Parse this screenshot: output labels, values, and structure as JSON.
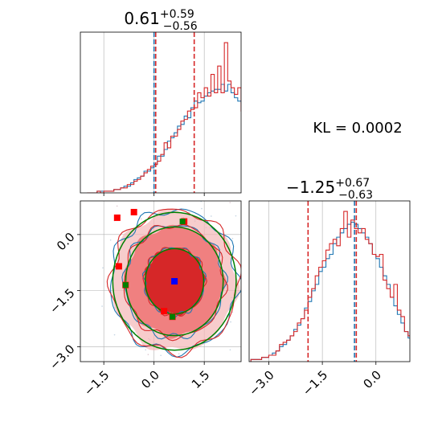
{
  "chart_data": [
    {
      "type": "histogram",
      "panel": "top-left",
      "title": {
        "median": "0.61",
        "plus": "+0.59",
        "minus": "−0.56"
      },
      "xlim": [
        -2.2,
        2.6
      ],
      "x_ticks": [
        "−1.5",
        "0.0",
        "1.5"
      ],
      "grid": true,
      "bins": {
        "start": -2.0,
        "width": 0.1
      },
      "series": [
        {
          "color": "#1f77b4",
          "values": [
            0,
            0,
            0,
            1,
            1,
            1,
            1,
            1,
            2,
            2,
            3,
            4,
            4,
            6,
            8,
            9,
            10,
            13,
            13,
            15,
            17,
            22,
            22,
            26,
            31,
            33,
            36,
            40,
            41,
            46,
            45,
            51,
            55,
            54,
            55,
            58,
            60,
            61,
            62,
            62,
            65,
            61,
            65,
            60,
            57,
            55,
            54,
            52,
            52,
            50,
            48,
            44,
            40,
            37,
            36,
            32,
            29,
            26,
            22,
            19,
            16,
            14,
            12,
            11,
            9,
            6,
            5,
            3,
            3,
            2,
            2,
            2,
            1,
            1,
            1,
            0
          ]
        },
        {
          "color": "#d62728",
          "values": [
            0,
            0,
            0,
            1,
            0,
            1,
            1,
            1,
            2,
            2,
            3,
            3,
            5,
            5,
            7,
            8,
            10,
            12,
            14,
            16,
            17,
            19,
            23,
            30,
            27,
            34,
            34,
            38,
            43,
            44,
            49,
            50,
            51,
            60,
            57,
            63,
            58,
            71,
            60,
            76,
            60,
            90,
            67,
            63,
            59,
            63,
            49,
            53,
            54,
            45,
            51,
            37,
            48,
            33,
            30,
            34,
            25,
            24,
            20,
            16,
            18,
            13,
            9,
            11,
            7,
            6,
            5,
            4,
            3,
            3,
            2,
            2,
            1,
            1,
            0,
            0
          ]
        }
      ],
      "markers": [
        {
          "color": "#1f77b4",
          "x": 0.0
        },
        {
          "color": "#d62728",
          "x": 0.05
        },
        {
          "color": "#d62728",
          "x": 1.2
        }
      ]
    },
    {
      "type": "contour",
      "panel": "bottom-left",
      "xlim": [
        -2.2,
        2.6
      ],
      "ylim": [
        -3.4,
        0.9
      ],
      "x_ticks": [
        "−1.5",
        "0.0",
        "1.5"
      ],
      "y_ticks": [
        "0.0",
        "−1.5",
        "−3.0"
      ],
      "grid": true,
      "center": [
        0.61,
        -1.25
      ],
      "blue_square": [
        0.61,
        -1.25
      ],
      "red_squares": [
        [
          -1.1,
          0.45
        ],
        [
          -0.6,
          0.6
        ],
        [
          -1.05,
          -0.85
        ],
        [
          -0.85,
          -1.35
        ],
        [
          0.3,
          -2.05
        ],
        [
          0.9,
          0.35
        ],
        [
          0.55,
          -2.2
        ]
      ],
      "green_squares": [
        [
          0.85,
          0.35
        ],
        [
          -0.85,
          -1.35
        ],
        [
          0.55,
          -2.2
        ]
      ],
      "levels": [
        0.9,
        1.5,
        1.9
      ]
    },
    {
      "type": "histogram",
      "panel": "bottom-right",
      "title": {
        "median": "−1.25",
        "plus": "+0.67",
        "minus": "−0.63"
      },
      "xlim": [
        -3.55,
        0.95
      ],
      "x_ticks": [
        "−3.0",
        "−1.5",
        "0.0"
      ],
      "grid": true,
      "bins": {
        "start": -3.5,
        "width": 0.1
      },
      "series": [
        {
          "color": "#1f77b4",
          "values": [
            1,
            1,
            1,
            2,
            2,
            3,
            4,
            5,
            7,
            8,
            10,
            12,
            15,
            17,
            20,
            25,
            28,
            33,
            36,
            42,
            44,
            48,
            50,
            55,
            58,
            60,
            62,
            64,
            65,
            64,
            62,
            60,
            58,
            55,
            50,
            48,
            44,
            40,
            36,
            30,
            26,
            22,
            18,
            14,
            11,
            9,
            7,
            5,
            3,
            2
          ]
        },
        {
          "color": "#d62728",
          "values": [
            1,
            1,
            1,
            2,
            2,
            3,
            3,
            5,
            8,
            9,
            10,
            12,
            14,
            18,
            20,
            24,
            30,
            34,
            40,
            44,
            47,
            52,
            55,
            57,
            54,
            62,
            70,
            58,
            66,
            62,
            60,
            62,
            57,
            55,
            50,
            49,
            50,
            38,
            34,
            30,
            36,
            24,
            21,
            14,
            12,
            8,
            6,
            4,
            3,
            3
          ]
        }
      ],
      "markers": [
        {
          "color": "#d62728",
          "x": -1.9
        },
        {
          "color": "#1f77b4",
          "x": -0.6
        },
        {
          "color": "#d62728",
          "x": -0.55
        }
      ]
    }
  ],
  "annotation": {
    "kl": "KL = 0.0002"
  },
  "colors": {
    "blue": "#1f77b4",
    "red": "#d62728",
    "green": "#008000",
    "pink": "#f08080",
    "light_pink": "#f4b6b6",
    "grid": "#b0b0b0"
  }
}
